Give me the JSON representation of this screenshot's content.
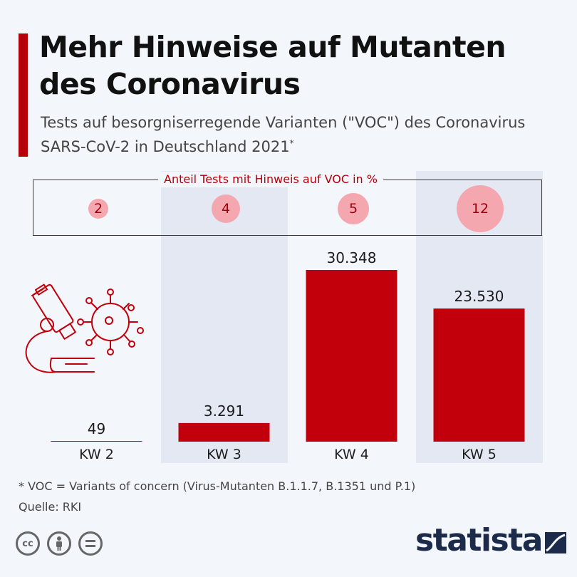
{
  "header": {
    "title": "Mehr Hinweise auf Mutanten des Coronavirus",
    "subtitle": "Tests auf besorgniserregende Varianten (\"VOC\") des Coronavirus SARS-CoV-2 in Deutschland 2021",
    "subtitle_marker": "*",
    "accent_color": "#b5000a"
  },
  "voc_panel": {
    "label": "Anteil Tests mit Hinweis auf VOC in %",
    "values": [
      "2",
      "4",
      "5",
      "12"
    ],
    "bubble_color": "#f5a7b0"
  },
  "chart_data": {
    "type": "bar",
    "categories": [
      "KW 2",
      "KW 3",
      "KW 4",
      "KW 5"
    ],
    "values": [
      49,
      3291,
      30348,
      23530
    ],
    "value_labels": [
      "49",
      "3.291",
      "30.348",
      "23.530"
    ],
    "voc_share_percent": [
      2,
      4,
      5,
      12
    ],
    "bar_color": "#c1000c",
    "ylim": [
      0,
      30348
    ],
    "grid": false
  },
  "illustration": {
    "name": "microscope-and-virus-icon"
  },
  "footer": {
    "footnote": "* VOC = Variants of concern (Virus-Mutanten B.1.1.7, B.1351 und P.1)",
    "source": "Quelle: RKI",
    "license_icons": [
      "cc-icon",
      "by-icon",
      "nd-icon"
    ],
    "brand": "statista"
  }
}
